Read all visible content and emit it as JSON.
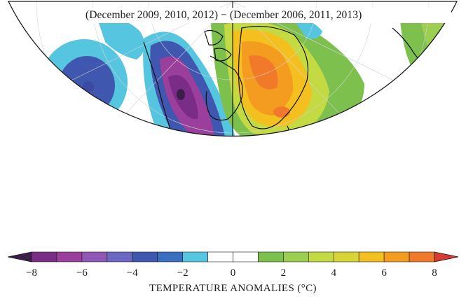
{
  "title": "(December 2009, 2010, 2012) − (December 2006, 2011, 2013)",
  "colorbar": {
    "label": "TEMPERATURE ANOMALIES (°C)",
    "min": -8,
    "max": 8,
    "step": 1,
    "tick_labels": [
      "−8",
      "−6",
      "−4",
      "−2",
      "0",
      "2",
      "4",
      "6",
      "8"
    ],
    "tick_values": [
      -8,
      -6,
      -4,
      -2,
      0,
      2,
      4,
      6,
      8
    ],
    "colors": [
      "#3b1f4a",
      "#7b2c86",
      "#9a3f9c",
      "#8f58b4",
      "#6a68c2",
      "#3f57ae",
      "#3a6ec0",
      "#56c5df",
      "#ffffff",
      "#ffffff",
      "#7ec04e",
      "#9cce52",
      "#c4da42",
      "#dad536",
      "#f4c020",
      "#f49c20",
      "#f17a2a",
      "#d93a32"
    ]
  },
  "map_colors": {
    "land_outline": "#111111",
    "grid": "#cfcfcf",
    "frame": "#1a1a1a"
  },
  "map_regions": {
    "description_free": true
  }
}
